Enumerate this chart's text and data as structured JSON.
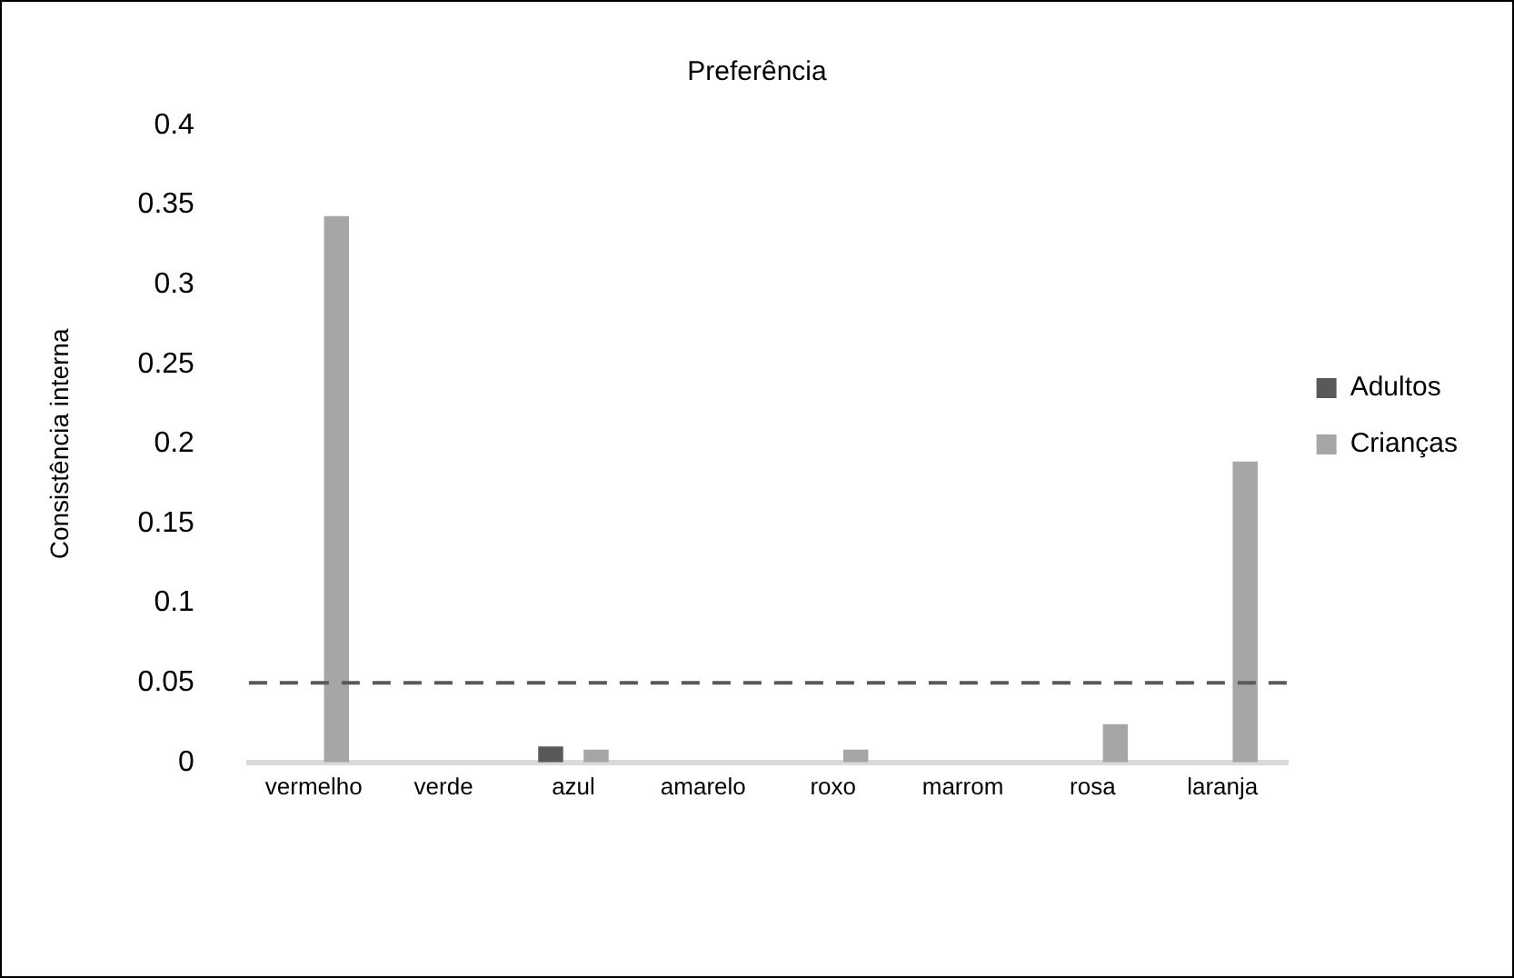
{
  "chart_data": {
    "type": "bar",
    "title": "Preferência",
    "ylabel": "Consistência interna",
    "categories": [
      "vermelho",
      "verde",
      "azul",
      "amarelo",
      "roxo",
      "marrom",
      "rosa",
      "laranja"
    ],
    "series": [
      {
        "name": "Adultos",
        "color": "#595959",
        "values": [
          0,
          0,
          0.01,
          0,
          0,
          0,
          0,
          0
        ]
      },
      {
        "name": "Crianças",
        "color": "#a6a6a6",
        "values": [
          0.343,
          0,
          0.008,
          0,
          0.008,
          0,
          0.024,
          0.189
        ]
      }
    ],
    "ylim": [
      0,
      0.4
    ],
    "yticks": [
      0,
      0.05,
      0.1,
      0.15,
      0.2,
      0.25,
      0.3,
      0.35,
      0.4
    ],
    "grid": false,
    "legend": "right",
    "ref_lines": [
      {
        "axis": "y",
        "value": 0.05,
        "color": "#595959",
        "line_style": "dashed"
      }
    ]
  }
}
